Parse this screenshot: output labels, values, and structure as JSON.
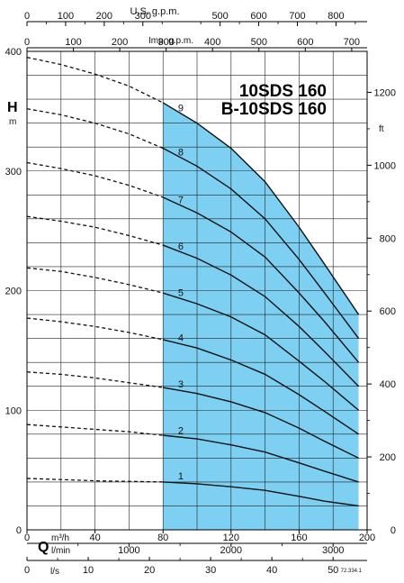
{
  "chart_data": {
    "type": "line",
    "title_lines": [
      "10SDS 160",
      "B-10SDS 160"
    ],
    "code": "72.334.1",
    "y_axis": {
      "label": "H",
      "unit": "m",
      "range": [
        0,
        400
      ],
      "ticks": [
        0,
        100,
        200,
        300,
        400
      ]
    },
    "y_axis_right": {
      "unit": "ft",
      "ticks": [
        0,
        200,
        400,
        600,
        800,
        1000,
        1200
      ],
      "factor": 3.28084
    },
    "x_axis": {
      "label": "Q",
      "unit": "m³/h",
      "range": [
        0,
        200
      ],
      "ticks": [
        0,
        40,
        80,
        120,
        160,
        200
      ]
    },
    "x_axis_lmin": {
      "unit": "l/min",
      "ticks": [
        1000,
        2000,
        3000
      ],
      "factor": 16.6667
    },
    "x_axis_ls": {
      "unit": "l/s",
      "ticks": [
        0,
        10,
        20,
        30,
        40,
        50
      ],
      "factor": 0.27778
    },
    "x_axis_usgpm": {
      "label": "U.S. g.p.m.",
      "ticks": [
        0,
        100,
        200,
        300,
        500,
        600,
        700,
        800
      ],
      "factor": 4.4029
    },
    "x_axis_impgpm": {
      "label": "Imp. g.p.m.",
      "ticks": [
        0,
        100,
        200,
        300,
        400,
        500,
        600,
        700
      ],
      "factor": 3.6662
    },
    "operating_range": [
      80,
      195
    ],
    "operating_fill": "#7dd0f2",
    "series": [
      {
        "name": "1",
        "label_x": 92,
        "points": [
          [
            0,
            43
          ],
          [
            20,
            42
          ],
          [
            40,
            41
          ],
          [
            60,
            40.5
          ],
          [
            80,
            40
          ],
          [
            100,
            38.5
          ],
          [
            120,
            36
          ],
          [
            140,
            33
          ],
          [
            160,
            28
          ],
          [
            175,
            24
          ],
          [
            195,
            20
          ]
        ]
      },
      {
        "name": "2",
        "label_x": 92,
        "points": [
          [
            0,
            88
          ],
          [
            20,
            86
          ],
          [
            40,
            84
          ],
          [
            60,
            82
          ],
          [
            80,
            79
          ],
          [
            100,
            76
          ],
          [
            120,
            71
          ],
          [
            140,
            65
          ],
          [
            160,
            56
          ],
          [
            175,
            49
          ],
          [
            195,
            40
          ]
        ]
      },
      {
        "name": "3",
        "label_x": 92,
        "points": [
          [
            0,
            132
          ],
          [
            20,
            130
          ],
          [
            40,
            127
          ],
          [
            60,
            123
          ],
          [
            80,
            119
          ],
          [
            100,
            114
          ],
          [
            120,
            107
          ],
          [
            140,
            98
          ],
          [
            160,
            85
          ],
          [
            175,
            74
          ],
          [
            195,
            60
          ]
        ]
      },
      {
        "name": "4",
        "label_x": 92,
        "points": [
          [
            0,
            177
          ],
          [
            20,
            174
          ],
          [
            40,
            170
          ],
          [
            60,
            165
          ],
          [
            80,
            159
          ],
          [
            100,
            152
          ],
          [
            120,
            142
          ],
          [
            140,
            130
          ],
          [
            160,
            113
          ],
          [
            175,
            99
          ],
          [
            195,
            80
          ]
        ]
      },
      {
        "name": "5",
        "label_x": 92,
        "points": [
          [
            0,
            219
          ],
          [
            20,
            216
          ],
          [
            40,
            211
          ],
          [
            60,
            205
          ],
          [
            80,
            198
          ],
          [
            100,
            189
          ],
          [
            120,
            178
          ],
          [
            140,
            163
          ],
          [
            160,
            141
          ],
          [
            175,
            124
          ],
          [
            195,
            100
          ]
        ]
      },
      {
        "name": "6",
        "label_x": 92,
        "points": [
          [
            0,
            262
          ],
          [
            20,
            258
          ],
          [
            40,
            253
          ],
          [
            60,
            246
          ],
          [
            80,
            238
          ],
          [
            100,
            227
          ],
          [
            120,
            213
          ],
          [
            140,
            195
          ],
          [
            160,
            170
          ],
          [
            175,
            149
          ],
          [
            195,
            120
          ]
        ]
      },
      {
        "name": "7",
        "label_x": 92,
        "points": [
          [
            0,
            307
          ],
          [
            20,
            302
          ],
          [
            40,
            296
          ],
          [
            60,
            288
          ],
          [
            80,
            278
          ],
          [
            100,
            265
          ],
          [
            120,
            249
          ],
          [
            140,
            228
          ],
          [
            160,
            198
          ],
          [
            175,
            174
          ],
          [
            195,
            140
          ]
        ]
      },
      {
        "name": "8",
        "label_x": 92,
        "points": [
          [
            0,
            352
          ],
          [
            20,
            347
          ],
          [
            40,
            340
          ],
          [
            60,
            331
          ],
          [
            80,
            319
          ],
          [
            100,
            304
          ],
          [
            120,
            285
          ],
          [
            140,
            260
          ],
          [
            160,
            226
          ],
          [
            175,
            198
          ],
          [
            195,
            160
          ]
        ]
      },
      {
        "name": "9",
        "label_x": 92,
        "points": [
          [
            0,
            395
          ],
          [
            20,
            389
          ],
          [
            40,
            381
          ],
          [
            60,
            371
          ],
          [
            80,
            357
          ],
          [
            100,
            340
          ],
          [
            120,
            319
          ],
          [
            140,
            291
          ],
          [
            160,
            253
          ],
          [
            175,
            222
          ],
          [
            195,
            180
          ]
        ]
      }
    ]
  }
}
